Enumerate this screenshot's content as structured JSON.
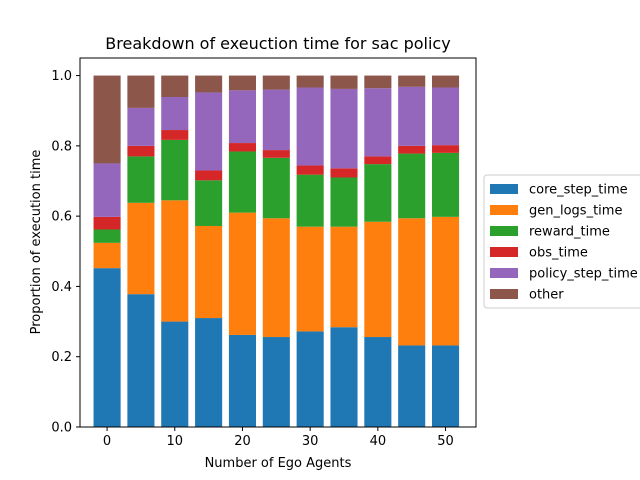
{
  "chart_data": {
    "type": "bar",
    "stacked": true,
    "title": "Breakdown of exeuction time for sac policy",
    "xlabel": "Number of Ego Agents",
    "ylabel": "Proportion of execution time",
    "x": [
      0,
      5,
      10,
      15,
      20,
      25,
      30,
      35,
      40,
      45,
      50
    ],
    "xlim": [
      -4,
      54.5
    ],
    "ylim": [
      0,
      1.05
    ],
    "xticks": [
      "0",
      "10",
      "20",
      "30",
      "40",
      "50"
    ],
    "yticks": [
      "0.0",
      "0.2",
      "0.4",
      "0.6",
      "0.8",
      "1.0"
    ],
    "legend_position": "center-right outside",
    "grid": false,
    "series": [
      {
        "name": "core_step_time",
        "color": "#1f77b4",
        "values": [
          0.452,
          0.378,
          0.3,
          0.31,
          0.262,
          0.256,
          0.272,
          0.284,
          0.256,
          0.232,
          0.232
        ]
      },
      {
        "name": "gen_logs_time",
        "color": "#ff7f0e",
        "values": [
          0.072,
          0.26,
          0.345,
          0.262,
          0.348,
          0.338,
          0.298,
          0.286,
          0.328,
          0.362,
          0.366
        ]
      },
      {
        "name": "reward_time",
        "color": "#2ca02c",
        "values": [
          0.038,
          0.132,
          0.172,
          0.13,
          0.174,
          0.172,
          0.148,
          0.14,
          0.164,
          0.184,
          0.182
        ]
      },
      {
        "name": "obs_time",
        "color": "#d62728",
        "values": [
          0.036,
          0.03,
          0.028,
          0.028,
          0.024,
          0.022,
          0.026,
          0.026,
          0.022,
          0.022,
          0.022
        ]
      },
      {
        "name": "policy_step_time",
        "color": "#9467bd",
        "values": [
          0.152,
          0.108,
          0.094,
          0.222,
          0.15,
          0.172,
          0.222,
          0.226,
          0.194,
          0.168,
          0.164
        ]
      },
      {
        "name": "other",
        "color": "#8c564b",
        "values": [
          0.25,
          0.092,
          0.061,
          0.048,
          0.042,
          0.04,
          0.034,
          0.038,
          0.036,
          0.032,
          0.034
        ]
      }
    ]
  }
}
